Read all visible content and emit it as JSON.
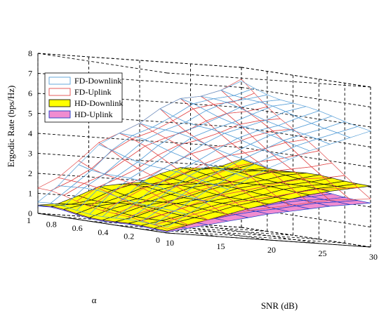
{
  "chart_data": {
    "type": "surface3d",
    "title": "",
    "xlabel": "SNR (dB)",
    "ylabel": "α",
    "zlabel": "Ergodic Rate (bps/Hz)",
    "xlim": [
      10,
      30
    ],
    "ylim": [
      0,
      1
    ],
    "zlim": [
      0,
      8
    ],
    "x_ticks": [
      "10",
      "15",
      "20",
      "25",
      "30"
    ],
    "y_ticks": [
      "0",
      "0.2",
      "0.4",
      "0.6",
      "0.8",
      "1"
    ],
    "z_ticks": [
      "0",
      "1",
      "2",
      "3",
      "4",
      "5",
      "6",
      "7",
      "8"
    ],
    "grid": true,
    "legend_position": "upper-left",
    "x_samples": [
      10,
      12,
      14,
      16,
      18,
      20,
      22,
      24,
      26,
      28,
      30
    ],
    "y_samples": [
      0,
      0.1,
      0.2,
      0.3,
      0.4,
      0.5,
      0.6,
      0.7,
      0.8,
      0.9,
      1.0
    ],
    "series": [
      {
        "name": "FD-Downlink",
        "color": "#5aa0d8",
        "fill": "none",
        "z_at_alpha0": [
          0.3,
          1.0,
          1.7,
          2.4,
          3.0,
          3.6,
          4.1,
          4.6,
          5.0,
          5.4,
          5.8
        ],
        "z_at_alpha1": [
          0.5,
          1.6,
          2.6,
          3.5,
          4.3,
          5.0,
          5.6,
          6.1,
          6.5,
          6.9,
          7.2
        ]
      },
      {
        "name": "FD-Uplink",
        "color": "#e24b4b",
        "fill": "none",
        "z_at_alpha0": [
          0.2,
          0.5,
          0.8,
          1.1,
          1.4,
          1.6,
          1.8,
          2.0,
          2.2,
          2.3,
          2.4
        ],
        "z_at_alpha1": [
          1.2,
          2.0,
          2.8,
          3.6,
          4.3,
          5.0,
          5.6,
          6.1,
          6.5,
          6.9,
          7.3
        ]
      },
      {
        "name": "HD-Downlink",
        "color": "#111111",
        "fill": "#ffff00",
        "z_at_alpha0": [
          0.1,
          0.45,
          0.8,
          1.15,
          1.5,
          1.8,
          2.1,
          2.4,
          2.65,
          2.85,
          3.05
        ],
        "z_at_alpha1": [
          0.35,
          0.7,
          1.05,
          1.4,
          1.75,
          2.05,
          2.35,
          2.65,
          2.9,
          3.1,
          3.3
        ]
      },
      {
        "name": "HD-Uplink",
        "color": "#1a3cc8",
        "fill": "#f08cd0",
        "z_at_alpha0": [
          0.05,
          0.3,
          0.55,
          0.8,
          1.05,
          1.3,
          1.5,
          1.7,
          1.9,
          2.05,
          2.2
        ],
        "z_at_alpha1": [
          0.3,
          0.6,
          0.9,
          1.2,
          1.45,
          1.7,
          1.95,
          2.15,
          2.35,
          2.5,
          2.65
        ]
      }
    ]
  }
}
